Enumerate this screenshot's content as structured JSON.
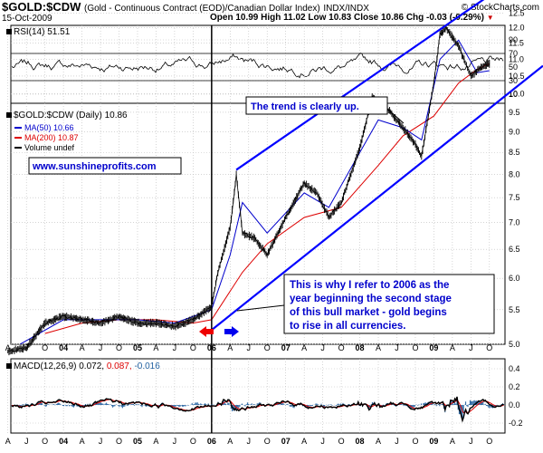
{
  "header": {
    "symbol": "$GOLD:$CDW",
    "description": "(Gold - Continuous Contract (EOD)/Canadian Dollar Index)",
    "exchange": "INDX/INDX",
    "copyright": "© StockCharts.com",
    "date": "15-Oct-2009",
    "open": "Open 10.99",
    "high": "High 11.02",
    "low": "Low 10.83",
    "close": "Close 10.86",
    "change": "Chg -0.03 (-0.29%)",
    "change_arrow": "triangle-down-icon"
  },
  "colors": {
    "price": "#000000",
    "ma50": "#0000cc",
    "ma200": "#dd0000",
    "trendline": "#0000ff",
    "macd": "#000000",
    "signal": "#dd0000",
    "histogram": "#1f5f9f",
    "annotation_text": "#0000cc",
    "arrow_left": "#ee0000",
    "arrow_right": "#0000ee"
  },
  "chart_data": [
    {
      "type": "line",
      "panel": "rsi",
      "title": "RSI(14) 51.51",
      "yticks": [
        10,
        30,
        50,
        70,
        90
      ],
      "ylim": [
        0,
        100
      ],
      "reference_lines": [
        30,
        70
      ],
      "last_value": 51.51
    },
    {
      "type": "line",
      "panel": "price",
      "title": "$GOLD:$CDW (Daily) 10.86",
      "legend": [
        {
          "name": "MA(50) 10.66",
          "color": "#0000cc"
        },
        {
          "name": "MA(200) 10.87",
          "color": "#dd0000"
        },
        {
          "name": "Volume undef",
          "color": "#000000"
        }
      ],
      "x_tick_labels": [
        "A",
        "J",
        "O",
        "04",
        "A",
        "J",
        "O",
        "05",
        "A",
        "J",
        "O",
        "06",
        "A",
        "J",
        "O",
        "07",
        "A",
        "J",
        "O",
        "08",
        "A",
        "J",
        "O",
        "09",
        "A",
        "J",
        "O"
      ],
      "yticks": [
        5.0,
        5.5,
        6.0,
        6.5,
        7.0,
        7.5,
        8.0,
        8.5,
        9.0,
        9.5,
        10.0,
        10.5,
        11.0,
        11.5,
        12.0,
        12.5
      ],
      "ylim": [
        4.6,
        13.2
      ],
      "y_scale": "log",
      "series": [
        {
          "name": "$GOLD:$CDW",
          "x": [
            "2003-04",
            "2003-07",
            "2003-10",
            "2004-01",
            "2004-04",
            "2004-07",
            "2004-10",
            "2005-01",
            "2005-04",
            "2005-07",
            "2005-10",
            "2006-01",
            "2006-02",
            "2006-04",
            "2006-05",
            "2006-06",
            "2006-08",
            "2006-10",
            "2007-01",
            "2007-04",
            "2007-06",
            "2007-08",
            "2007-10",
            "2008-01",
            "2008-03",
            "2008-06",
            "2008-08",
            "2008-10",
            "2008-11",
            "2009-01",
            "2009-02",
            "2009-03",
            "2009-05",
            "2009-07",
            "2009-09",
            "2009-10"
          ],
          "values": [
            4.9,
            4.95,
            5.3,
            5.4,
            5.35,
            5.3,
            5.4,
            5.3,
            5.3,
            5.25,
            5.35,
            5.55,
            6.1,
            6.9,
            8.0,
            6.8,
            6.7,
            6.4,
            7.1,
            7.8,
            7.6,
            7.1,
            7.4,
            8.6,
            9.9,
            9.5,
            9.1,
            8.7,
            8.4,
            10.3,
            11.8,
            12.0,
            11.4,
            10.5,
            10.8,
            10.86
          ]
        },
        {
          "name": "MA(50) 10.66",
          "x": [
            "2003-06",
            "2004-01",
            "2004-07",
            "2005-01",
            "2005-07",
            "2006-01",
            "2006-04",
            "2006-06",
            "2006-10",
            "2007-04",
            "2007-08",
            "2008-01",
            "2008-04",
            "2008-08",
            "2008-11",
            "2009-02",
            "2009-05",
            "2009-08",
            "2009-10"
          ],
          "values": [
            5.0,
            5.35,
            5.35,
            5.35,
            5.3,
            5.5,
            6.4,
            7.4,
            6.8,
            7.6,
            7.3,
            8.5,
            9.3,
            9.1,
            8.8,
            11.0,
            11.6,
            10.6,
            10.66
          ]
        },
        {
          "name": "MA(200) 10.87",
          "x": [
            "2003-10",
            "2004-04",
            "2004-10",
            "2005-04",
            "2005-10",
            "2006-01",
            "2006-06",
            "2006-10",
            "2007-04",
            "2007-10",
            "2008-04",
            "2008-08",
            "2009-01",
            "2009-05",
            "2009-08",
            "2009-10"
          ],
          "values": [
            5.15,
            5.3,
            5.35,
            5.35,
            5.3,
            5.35,
            6.1,
            6.6,
            7.1,
            7.3,
            8.2,
            8.9,
            9.4,
            10.3,
            10.7,
            10.87
          ]
        },
        {
          "name": "upper channel",
          "x": [
            "2006-05",
            "2010-01"
          ],
          "values": [
            8.1,
            13.6
          ]
        },
        {
          "name": "lower channel",
          "x": [
            "2006-01",
            "2010-01"
          ],
          "values": [
            5.2,
            10.0
          ]
        }
      ],
      "annotations": [
        {
          "id": "trend",
          "text": "The trend is clearly up."
        },
        {
          "id": "url",
          "text": "www.sunshineprofits.com"
        },
        {
          "id": "comment",
          "lines": [
            "This is why I refer to 2006 as the",
            "year beginning the second stage",
            "of this bull market - gold begins",
            "to rise in all currencies."
          ]
        }
      ],
      "arrows": [
        "arrow-left-icon",
        "arrow-right-icon"
      ],
      "vertical_marker": "2006-01"
    },
    {
      "type": "line",
      "panel": "macd",
      "title": "MACD(12,26,9) 0.072, 0.087, -0.016",
      "title_parts": {
        "name": "MACD(12,26,9)",
        "macd": "0.072",
        "signal": "0.087",
        "hist": "-0.016"
      },
      "yticks": [
        -0.2,
        0.0,
        0.2,
        0.4
      ],
      "ylim": [
        -0.3,
        0.5
      ],
      "x_tick_labels": [
        "A",
        "J",
        "O",
        "04",
        "A",
        "J",
        "O",
        "05",
        "A",
        "J",
        "O",
        "06",
        "A",
        "J",
        "O",
        "07",
        "A",
        "J",
        "O",
        "08",
        "A",
        "J",
        "O",
        "09",
        "A",
        "J",
        "O"
      ]
    }
  ]
}
